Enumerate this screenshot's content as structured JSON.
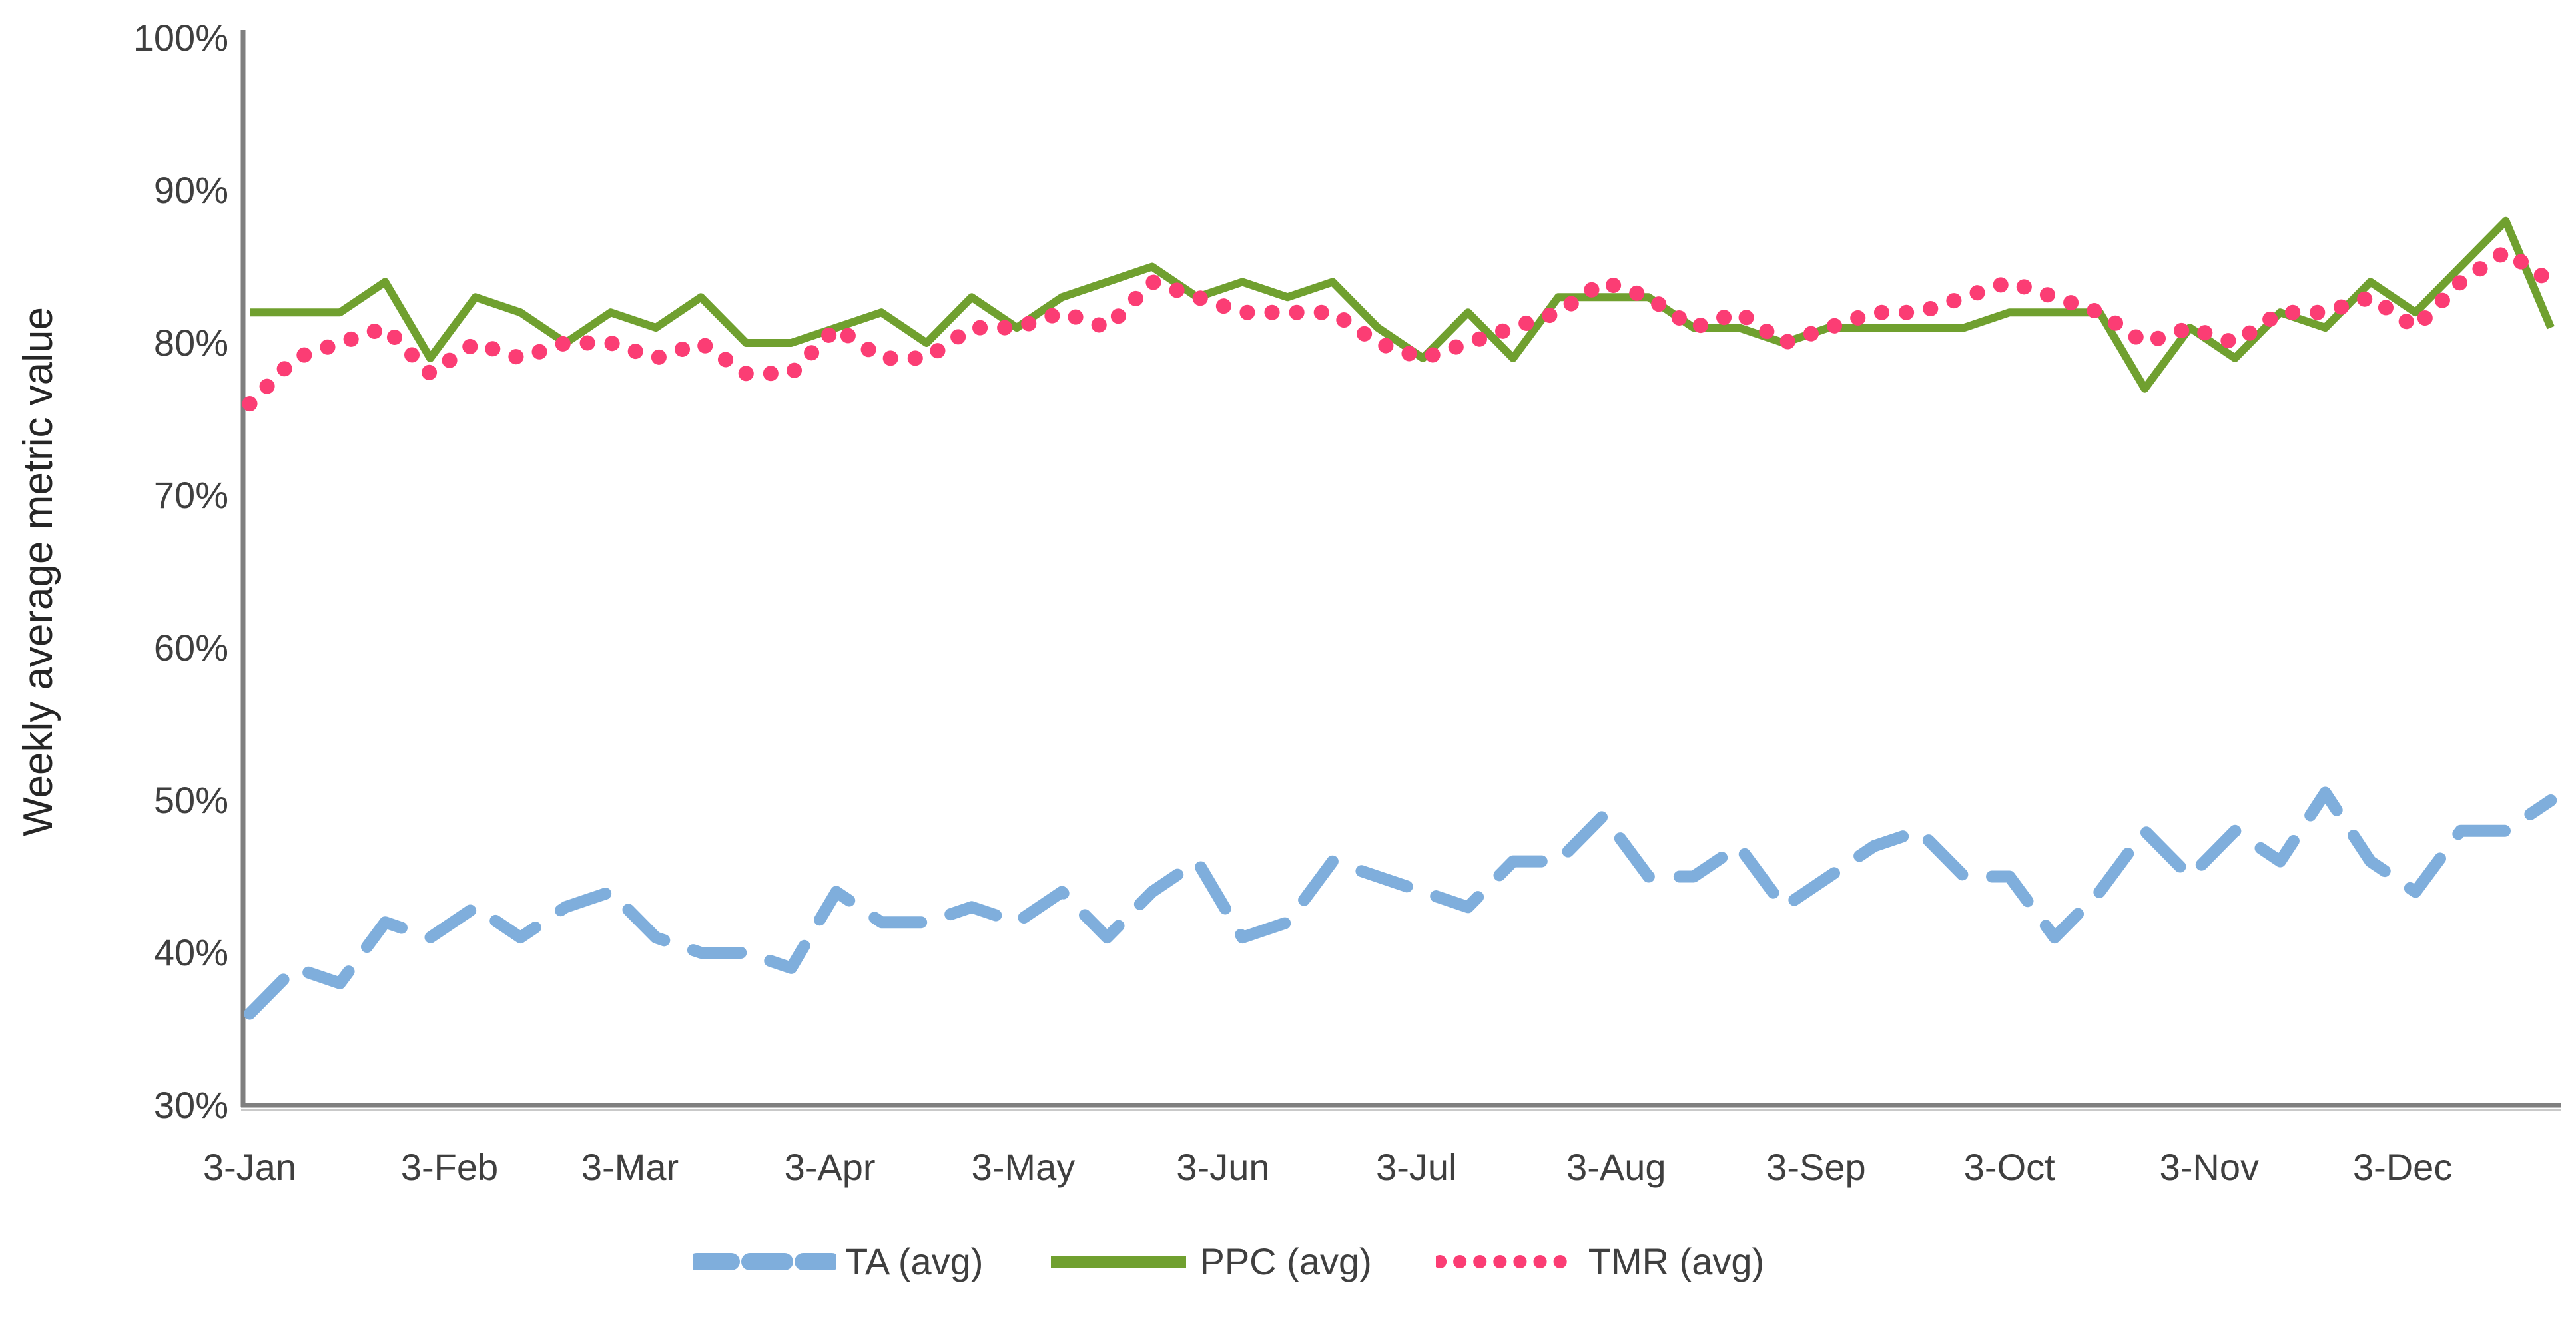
{
  "chart_data": {
    "type": "line",
    "title": "",
    "y_axis": {
      "title": "Weekly average metric value",
      "tick_labels": [
        "30%",
        "40%",
        "50%",
        "60%",
        "70%",
        "80%",
        "90%",
        "100%"
      ],
      "tick_values": [
        30,
        40,
        50,
        60,
        70,
        80,
        90,
        100
      ],
      "range": [
        30,
        100
      ]
    },
    "x_axis": {
      "tick_labels": [
        "3-Jan",
        "3-Feb",
        "3-Mar",
        "3-Apr",
        "3-May",
        "3-Jun",
        "3-Jul",
        "3-Aug",
        "3-Sep",
        "3-Oct",
        "3-Nov",
        "3-Dec"
      ],
      "tick_day_offsets": [
        0,
        31,
        59,
        90,
        120,
        151,
        181,
        212,
        243,
        273,
        304,
        334
      ],
      "points_per_series": 52,
      "point_interval": "weekly"
    },
    "grid": false,
    "legend": {
      "position": "bottom"
    },
    "series": [
      {
        "name": "TA (avg)",
        "style": "dashed",
        "color": "#7FAEDC",
        "values": [
          36,
          39,
          38,
          42,
          41,
          43,
          41,
          43,
          44,
          41,
          40,
          40,
          39,
          44,
          42,
          42,
          43,
          42,
          44,
          41,
          44,
          46,
          41,
          42,
          46,
          45,
          44,
          43,
          46,
          46,
          49,
          45,
          45,
          47,
          43,
          45,
          47,
          48,
          45,
          45,
          41,
          44,
          48,
          45,
          48,
          46,
          50.5,
          46,
          44,
          48,
          48,
          50
        ]
      },
      {
        "name": "PPC (avg)",
        "style": "solid",
        "color": "#70A02F",
        "values": [
          82,
          82,
          82,
          84,
          79,
          83,
          82,
          80,
          82,
          81,
          83,
          80,
          80,
          81,
          82,
          80,
          83,
          81,
          83,
          84,
          85,
          83,
          84,
          83,
          84,
          81,
          79,
          82,
          79,
          83,
          83,
          83,
          81,
          81,
          80,
          81,
          81,
          81,
          81,
          82,
          82,
          82,
          77,
          81,
          79,
          82,
          81,
          84,
          82,
          85,
          88,
          81
        ]
      },
      {
        "name": "TMR (avg)",
        "style": "dotted",
        "color": "#FB3D74",
        "values": [
          76,
          79,
          80,
          81,
          78,
          80,
          79,
          80,
          80,
          79,
          80,
          78,
          78,
          81,
          79,
          79,
          81,
          81,
          82,
          81,
          84,
          83,
          82,
          82,
          82,
          80,
          79,
          80,
          81,
          82,
          84,
          83,
          81,
          82,
          80,
          81,
          82,
          82,
          83,
          84,
          83,
          82,
          80,
          81,
          80,
          82,
          82,
          83,
          81,
          84,
          86,
          84
        ]
      }
    ],
    "axis_color": "#7f7f7f",
    "text_color": "#3f3f3f"
  }
}
